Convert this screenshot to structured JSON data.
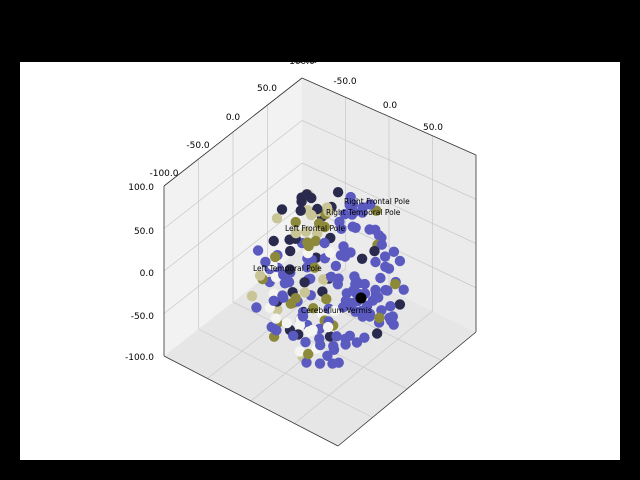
{
  "chart_data": {
    "type": "scatter",
    "projection": "3d",
    "title": "",
    "axes": {
      "x": {
        "ticks": [
          "-50.0",
          "0.0",
          "50.0",
          "100.0"
        ]
      },
      "y": {
        "ticks": [
          "-100.0",
          "-50.0",
          "0.0",
          "50.0"
        ],
        "label": "Ros–Cau"
      },
      "z": {
        "ticks": [
          "-100.0",
          "-50.0",
          "0.0",
          "50.0",
          "100.0"
        ]
      }
    },
    "colors": {
      "blue": "#5a5ac0",
      "navy": "#2a2a4e",
      "khaki": "#c9c596",
      "olive": "#8c8a3a",
      "white": "#f4f4f0",
      "black": "#000000"
    },
    "annotations": [
      {
        "text": "Right Frontal Pole"
      },
      {
        "text": "Right Temporal Pole"
      },
      {
        "text": "Left Frontal Pole"
      },
      {
        "text": "Left Temporal Pole"
      },
      {
        "text": "Cerebellum Vermis"
      }
    ]
  }
}
